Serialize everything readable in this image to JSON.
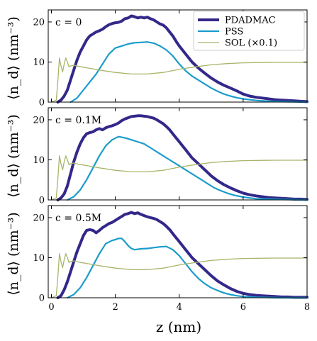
{
  "chart_data": {
    "type": "line",
    "ylabel": "⟨n_d⟩ (nm⁻³)",
    "xlabel": "z (nm)",
    "xlim": [
      -0.1,
      8
    ],
    "ylim": [
      0,
      23
    ],
    "xticks": [
      0,
      2,
      4,
      6,
      8
    ],
    "yticks": [
      0,
      10,
      20
    ],
    "legend": {
      "placement": "top-right",
      "entries": [
        "PDADMAC",
        "PSS",
        "SOL (×0.1)"
      ]
    },
    "colors": {
      "PDADMAC": "#33288a",
      "PSS": "#1b9ccb",
      "SOL (×0.1)": "#a8b56a"
    },
    "panels": [
      {
        "label": "c = 0",
        "series": [
          {
            "name": "PDADMAC",
            "x": [
              0.2,
              0.3,
              0.4,
              0.5,
              0.6,
              0.7,
              0.8,
              0.9,
              1.0,
              1.1,
              1.2,
              1.3,
              1.4,
              1.5,
              1.6,
              1.7,
              1.8,
              1.9,
              2.0,
              2.1,
              2.2,
              2.3,
              2.4,
              2.5,
              2.6,
              2.7,
              2.8,
              2.9,
              3.0,
              3.1,
              3.2,
              3.3,
              3.4,
              3.5,
              3.6,
              3.7,
              3.8,
              3.9,
              4.0,
              4.2,
              4.4,
              4.6,
              4.8,
              5.0,
              5.2,
              5.4,
              5.6,
              5.8,
              6.0,
              6.2,
              6.4,
              6.6,
              6.8,
              7.0,
              7.2,
              7.4,
              7.6,
              7.8,
              8.0
            ],
            "y": [
              0,
              0.5,
              1.5,
              3,
              5.5,
              8,
              10.5,
              12.5,
              14,
              15.5,
              16.5,
              17,
              17.5,
              17.8,
              18.2,
              18.8,
              19.3,
              19.6,
              19.8,
              19.9,
              20.2,
              20.8,
              21,
              21.5,
              21.3,
              21,
              21.2,
              21,
              21.2,
              20.8,
              20.5,
              20,
              19.5,
              19.2,
              18.5,
              17.5,
              16.5,
              15.2,
              14,
              12,
              10,
              8.5,
              7.2,
              6,
              5,
              4.2,
              3.5,
              2.8,
              2,
              1.5,
              1.2,
              1,
              0.8,
              0.6,
              0.5,
              0.4,
              0.3,
              0.2,
              0.1
            ]
          },
          {
            "name": "PSS",
            "x": [
              0.6,
              0.8,
              1.0,
              1.2,
              1.4,
              1.6,
              1.8,
              2.0,
              2.2,
              2.4,
              2.6,
              2.8,
              3.0,
              3.2,
              3.4,
              3.6,
              3.8,
              4.0,
              4.2,
              4.4,
              4.6,
              4.8,
              5.0,
              5.2,
              5.4,
              5.6,
              5.8,
              6.0,
              6.4,
              6.8,
              7.2,
              7.6,
              8.0
            ],
            "y": [
              0,
              1,
              3,
              5,
              7,
              9.5,
              12,
              13.5,
              14,
              14.5,
              14.8,
              14.9,
              15,
              14.7,
              14,
              13,
              11.5,
              9.5,
              7.8,
              6.5,
              5.5,
              4.5,
              3.5,
              2.7,
              2,
              1.5,
              1.1,
              0.8,
              0.4,
              0.2,
              0.1,
              0.05,
              0
            ]
          },
          {
            "name": "SOL (×0.1)",
            "x": [
              0,
              0.15,
              0.2,
              0.25,
              0.3,
              0.35,
              0.4,
              0.45,
              0.5,
              0.55,
              0.6,
              0.7,
              0.8,
              1.0,
              1.5,
              2.0,
              2.5,
              3.0,
              3.5,
              4.0,
              4.5,
              5.0,
              5.5,
              6.0,
              7.0,
              8.0
            ],
            "y": [
              0,
              0.5,
              5,
              11,
              9,
              7.5,
              9.5,
              11,
              10,
              8.8,
              9,
              9.2,
              9,
              8.7,
              8,
              7.4,
              7,
              7,
              7.4,
              8.2,
              8.8,
              9.3,
              9.6,
              9.8,
              9.9,
              9.9
            ]
          }
        ]
      },
      {
        "label": "c = 0.1M",
        "series": [
          {
            "name": "PDADMAC",
            "x": [
              0.2,
              0.3,
              0.4,
              0.5,
              0.6,
              0.7,
              0.8,
              0.9,
              1.0,
              1.1,
              1.2,
              1.3,
              1.4,
              1.5,
              1.6,
              1.7,
              1.8,
              1.9,
              2.0,
              2.1,
              2.2,
              2.3,
              2.4,
              2.5,
              2.6,
              2.7,
              2.8,
              2.9,
              3.0,
              3.1,
              3.2,
              3.3,
              3.4,
              3.5,
              3.6,
              3.7,
              3.8,
              3.9,
              4.0,
              4.2,
              4.4,
              4.6,
              4.8,
              5.0,
              5.2,
              5.4,
              5.6,
              5.8,
              6.0,
              6.2,
              6.4,
              6.6,
              6.8,
              7.0,
              7.2,
              7.4,
              7.6,
              7.8,
              8.0
            ],
            "y": [
              0,
              0.5,
              1.5,
              3.5,
              6.5,
              9.5,
              12,
              14,
              15.5,
              16.5,
              16.8,
              17,
              17.5,
              17.8,
              17.5,
              18,
              18.3,
              18.5,
              18.8,
              19.2,
              19.8,
              20.2,
              20.5,
              20.8,
              20.9,
              21,
              21,
              20.9,
              20.8,
              20.6,
              20.4,
              20,
              19.5,
              19,
              18.3,
              17.5,
              16.5,
              15.5,
              14.5,
              12.5,
              10.5,
              9,
              7.5,
              6,
              4.8,
              3.8,
              3,
              2.3,
              1.7,
              1.3,
              1,
              0.8,
              0.6,
              0.5,
              0.4,
              0.3,
              0.2,
              0.2,
              0.1
            ]
          },
          {
            "name": "PSS",
            "x": [
              0.5,
              0.7,
              0.9,
              1.1,
              1.3,
              1.5,
              1.7,
              1.9,
              2.1,
              2.3,
              2.5,
              2.7,
              2.9,
              3.1,
              3.3,
              3.5,
              3.7,
              3.9,
              4.1,
              4.3,
              4.5,
              4.7,
              4.9,
              5.1,
              5.3,
              5.5,
              5.7,
              6.0,
              6.4,
              6.8,
              7.2,
              7.6,
              8.0
            ],
            "y": [
              0,
              0.8,
              2.5,
              5,
              8,
              11,
              13.5,
              15,
              15.8,
              15.5,
              15,
              14.5,
              14,
              13,
              12,
              11,
              10,
              9,
              8,
              7,
              6,
              5,
              4,
              3,
              2.3,
              1.7,
              1.2,
              0.7,
              0.3,
              0.2,
              0.1,
              0.05,
              0
            ]
          },
          {
            "name": "SOL (×0.1)",
            "x": [
              0,
              0.15,
              0.2,
              0.25,
              0.3,
              0.35,
              0.4,
              0.45,
              0.5,
              0.55,
              0.6,
              0.7,
              0.8,
              1.0,
              1.5,
              2.0,
              2.5,
              3.0,
              3.5,
              4.0,
              4.5,
              5.0,
              5.5,
              6.0,
              7.0,
              8.0
            ],
            "y": [
              0,
              0.5,
              5,
              11,
              9,
              7.5,
              9.5,
              11,
              10,
              8.8,
              9,
              9.2,
              9,
              8.7,
              8,
              7.4,
              7,
              7,
              7.4,
              8.2,
              8.8,
              9.3,
              9.6,
              9.8,
              9.9,
              9.9
            ]
          }
        ]
      },
      {
        "label": "c = 0.5M",
        "series": [
          {
            "name": "PDADMAC",
            "x": [
              0.2,
              0.3,
              0.4,
              0.5,
              0.6,
              0.7,
              0.8,
              0.9,
              1.0,
              1.1,
              1.2,
              1.3,
              1.4,
              1.5,
              1.6,
              1.7,
              1.8,
              1.9,
              2.0,
              2.1,
              2.2,
              2.3,
              2.4,
              2.5,
              2.6,
              2.7,
              2.8,
              2.9,
              3.0,
              3.1,
              3.2,
              3.3,
              3.4,
              3.5,
              3.6,
              3.7,
              3.8,
              3.9,
              4.0,
              4.2,
              4.4,
              4.6,
              4.8,
              5.0,
              5.2,
              5.4,
              5.6,
              5.8,
              6.0,
              6.2,
              6.4,
              6.6,
              6.8,
              7.0,
              7.2,
              7.4,
              7.6,
              7.8,
              8.0
            ],
            "y": [
              0,
              0.5,
              2,
              4,
              6.5,
              9,
              11.5,
              13.5,
              15.5,
              16.8,
              17,
              16.8,
              16.2,
              16.8,
              17.5,
              18,
              18.5,
              18.8,
              19.3,
              19.8,
              20.3,
              20.8,
              21,
              21.3,
              21,
              21.2,
              20.8,
              20.5,
              20.2,
              20,
              19.8,
              19.5,
              19,
              18.5,
              17.8,
              17,
              16,
              15,
              14,
              12,
              10,
              8.5,
              7,
              5.5,
              4.2,
              3.2,
              2.3,
              1.6,
              1.1,
              0.8,
              0.6,
              0.5,
              0.4,
              0.3,
              0.2,
              0.2,
              0.1,
              0.1,
              0.1
            ]
          },
          {
            "name": "PSS",
            "x": [
              0.5,
              0.7,
              0.9,
              1.1,
              1.3,
              1.5,
              1.7,
              1.9,
              2.0,
              2.1,
              2.2,
              2.3,
              2.4,
              2.5,
              2.6,
              2.8,
              3.0,
              3.2,
              3.4,
              3.6,
              3.8,
              4.0,
              4.2,
              4.4,
              4.6,
              4.8,
              5.0,
              5.2,
              5.4,
              5.6,
              5.8,
              6.0,
              6.4,
              6.8,
              7.2,
              7.6,
              8.0
            ],
            "y": [
              0,
              0.8,
              2.5,
              5,
              8,
              11,
              13.5,
              14.3,
              14.5,
              14.8,
              14.8,
              14,
              13,
              12.3,
              12,
              12.2,
              12.3,
              12.5,
              12.7,
              12.8,
              12,
              10.5,
              8.5,
              6.5,
              4.8,
              3.5,
              2.5,
              1.8,
              1.2,
              0.8,
              0.5,
              0.3,
              0.15,
              0.05,
              0,
              0,
              0
            ]
          },
          {
            "name": "SOL (×0.1)",
            "x": [
              0,
              0.15,
              0.2,
              0.25,
              0.3,
              0.35,
              0.4,
              0.45,
              0.5,
              0.55,
              0.6,
              0.7,
              0.8,
              1.0,
              1.5,
              2.0,
              2.5,
              3.0,
              3.5,
              4.0,
              4.5,
              5.0,
              5.5,
              6.0,
              7.0,
              8.0
            ],
            "y": [
              0,
              0.5,
              5,
              11,
              9,
              7.5,
              9.5,
              11,
              10,
              8.8,
              9,
              9.2,
              9,
              8.7,
              8,
              7.4,
              7,
              7,
              7.4,
              8.2,
              8.8,
              9.3,
              9.6,
              9.8,
              9.9,
              9.9
            ]
          }
        ]
      }
    ]
  }
}
